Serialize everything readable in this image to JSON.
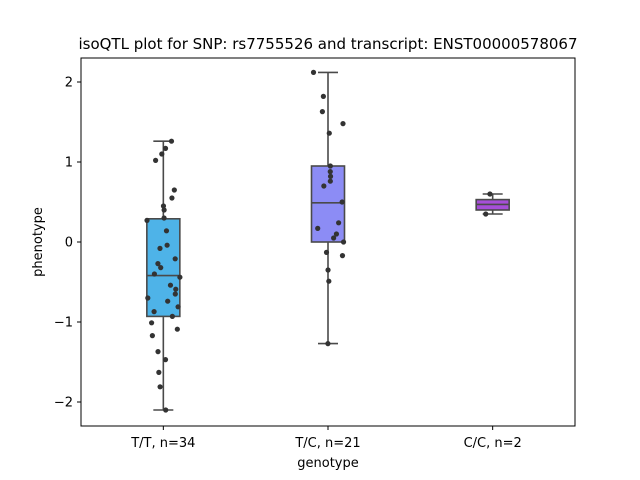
{
  "chart_data": {
    "type": "box",
    "title": "isoQTL plot for SNP: rs7755526 and transcript: ENST00000578067",
    "xlabel": "genotype",
    "ylabel": "phenotype",
    "ylim": [
      -2.3,
      2.3
    ],
    "yticks": [
      -2,
      -1,
      0,
      1,
      2
    ],
    "ytick_labels": [
      "−2",
      "−1",
      "0",
      "1",
      "2"
    ],
    "grid": false,
    "categories": [
      "T/T, n=34",
      "T/C, n=21",
      "C/C, n=2"
    ],
    "colors": [
      "#4eb3e8",
      "#8c8cf5",
      "#a64fd8"
    ],
    "box_edge_color": "#4a4a4a",
    "point_color": "#333333",
    "boxes": [
      {
        "q1": -0.93,
        "median": -0.42,
        "q3": 0.29,
        "whisker_low": -2.1,
        "whisker_high": 1.26
      },
      {
        "q1": 0.0,
        "median": 0.49,
        "q3": 0.95,
        "whisker_low": -1.27,
        "whisker_high": 2.12
      },
      {
        "q1": 0.4,
        "median": 0.47,
        "q3": 0.53,
        "whisker_low": 0.35,
        "whisker_high": 0.6
      }
    ],
    "points": [
      [
        1.26,
        1.17,
        1.1,
        1.02,
        0.65,
        0.55,
        0.45,
        0.4,
        0.3,
        0.27,
        0.14,
        -0.04,
        -0.08,
        -0.21,
        -0.27,
        -0.32,
        -0.4,
        -0.44,
        -0.54,
        -0.59,
        -0.65,
        -0.7,
        -0.74,
        -0.81,
        -0.87,
        -0.93,
        -1.01,
        -1.09,
        -1.17,
        -1.37,
        -1.47,
        -1.63,
        -1.81,
        -2.1
      ],
      [
        2.12,
        1.82,
        1.63,
        1.48,
        1.36,
        0.95,
        0.88,
        0.82,
        0.76,
        0.7,
        0.5,
        0.24,
        0.17,
        0.1,
        0.05,
        0.0,
        -0.13,
        -0.17,
        -0.35,
        -0.49,
        -1.27
      ],
      [
        0.6,
        0.35
      ]
    ]
  }
}
